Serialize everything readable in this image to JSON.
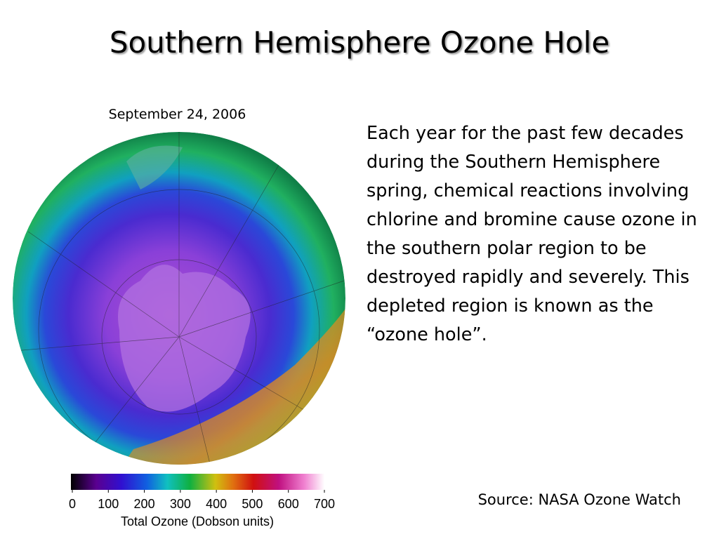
{
  "title": "Southern Hemisphere Ozone Hole",
  "image": {
    "date": "September 24, 2006"
  },
  "colorbar": {
    "ticks": [
      0,
      100,
      200,
      300,
      400,
      500,
      600,
      700
    ],
    "label": "Total Ozone (Dobson units)"
  },
  "body": {
    "text": "Each year for the past few decades during the Southern Hemisphere spring, chemical reactions involving chlorine and bromine cause ozone in the southern polar region to be destroyed rapidly and severely. This depleted region is known as the “ozone hole”."
  },
  "source": "Source: NASA Ozone Watch"
}
